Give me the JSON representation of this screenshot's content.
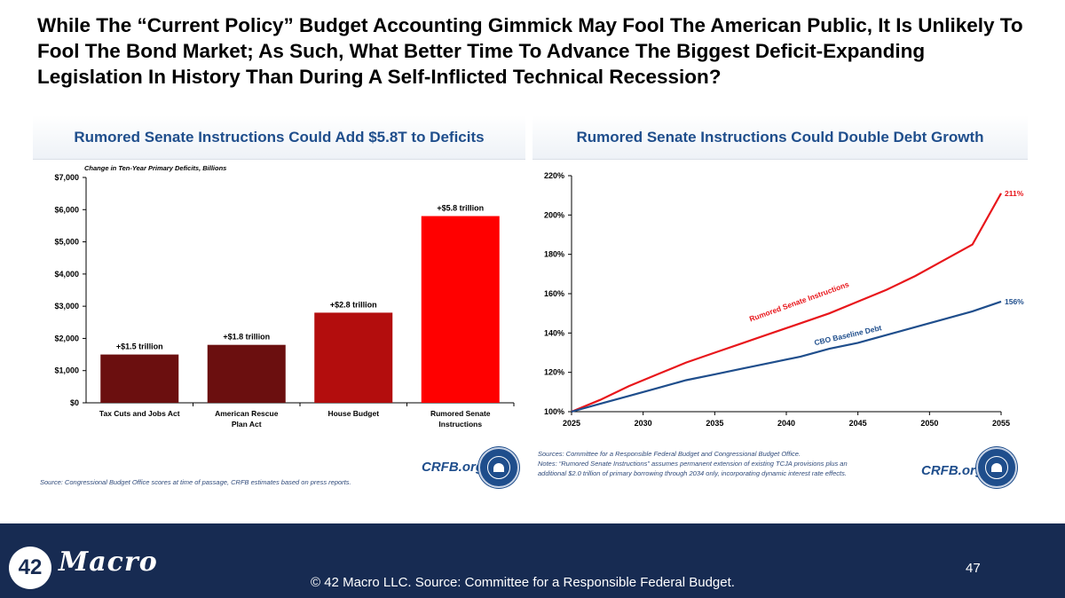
{
  "slide": {
    "title": "While The “Current Policy” Budget Accounting Gimmick May Fool The American Public, It Is Unlikely To Fool The Bond Market; As Such, What Better Time To Advance The Biggest Deficit-Expanding Legislation In History Than During A Self-Inflicted Technical Recession?"
  },
  "left_panel": {
    "header": "Rumored Senate Instructions Could Add $5.8T to Deficits",
    "source": "Source: Congressional Budget Office scores at time of passage, CRFB estimates based on press reports.",
    "brand": "CRFB.org"
  },
  "right_panel": {
    "header": "Rumored Senate Instructions Could Double Debt Growth",
    "sources": "Sources: Committee for a Responsible Federal Budget and Congressional Budget Office.",
    "notes_line1": "Notes: “Rumored Senate Instructions” assumes permanent extension of existing TCJA provisions plus an",
    "notes_line2": "additional $2.0 trillion of primary borrowing through 2034 only, incorporating dynamic interest rate effects.",
    "brand": "CRFB.org"
  },
  "footer": {
    "logo_number": "42",
    "logo_word": "Macro",
    "text": "© 42 Macro LLC. Source: Committee for a Responsible Federal Budget.",
    "page_number": "47"
  },
  "colors": {
    "navy": "#172b52",
    "header_blue": "#1f4e8c",
    "bar_dark": "#6b0f0f",
    "bar_mid": "#b30d0d",
    "bar_red": "#ff0000",
    "line_red": "#e8161b",
    "line_blue": "#1f4e8c"
  },
  "chart_data": [
    {
      "type": "bar",
      "title": "Rumored Senate Instructions Could Add $5.8T to Deficits",
      "subtitle": "Change in Ten-Year Primary Deficits, Billions",
      "categories": [
        "Tax Cuts and Jobs Act",
        "American Rescue Plan Act",
        "House Budget",
        "Rumored Senate Instructions"
      ],
      "values": [
        1500,
        1800,
        2800,
        5800
      ],
      "data_labels": [
        "+$1.5 trillion",
        "+$1.8 trillion",
        "+$2.8 trillion",
        "+$5.8 trillion"
      ],
      "bar_colors": [
        "#6b0f0f",
        "#6b0f0f",
        "#b30d0d",
        "#ff0000"
      ],
      "ylim": [
        0,
        7000
      ],
      "yticks": [
        0,
        1000,
        2000,
        3000,
        4000,
        5000,
        6000,
        7000
      ],
      "ytick_labels": [
        "$0",
        "$1,000",
        "$2,000",
        "$3,000",
        "$4,000",
        "$5,000",
        "$6,000",
        "$7,000"
      ],
      "xlabel": "",
      "ylabel": "",
      "grid": false
    },
    {
      "type": "line",
      "title": "Rumored Senate Instructions Could Double Debt Growth",
      "xlim": [
        2025,
        2055
      ],
      "ylim": [
        100,
        220
      ],
      "xticks": [
        2025,
        2030,
        2035,
        2040,
        2045,
        2050,
        2055
      ],
      "yticks": [
        100,
        120,
        140,
        160,
        180,
        200,
        220
      ],
      "ytick_labels": [
        "100%",
        "120%",
        "140%",
        "160%",
        "180%",
        "200%",
        "220%"
      ],
      "grid": false,
      "series": [
        {
          "name": "Rumored Senate Instructions",
          "color": "#e8161b",
          "end_label": "211%",
          "x": [
            2025,
            2027,
            2029,
            2031,
            2033,
            2035,
            2037,
            2039,
            2041,
            2043,
            2045,
            2047,
            2049,
            2051,
            2053,
            2055
          ],
          "y": [
            100,
            106,
            113,
            119,
            125,
            130,
            135,
            140,
            145,
            150,
            156,
            162,
            169,
            177,
            185,
            211
          ]
        },
        {
          "name": "CBO Baseline Debt",
          "color": "#1f4e8c",
          "end_label": "156%",
          "x": [
            2025,
            2027,
            2029,
            2031,
            2033,
            2035,
            2037,
            2039,
            2041,
            2043,
            2045,
            2047,
            2049,
            2051,
            2053,
            2055
          ],
          "y": [
            100,
            104,
            108,
            112,
            116,
            119,
            122,
            125,
            128,
            132,
            135,
            139,
            143,
            147,
            151,
            156
          ]
        }
      ]
    }
  ]
}
